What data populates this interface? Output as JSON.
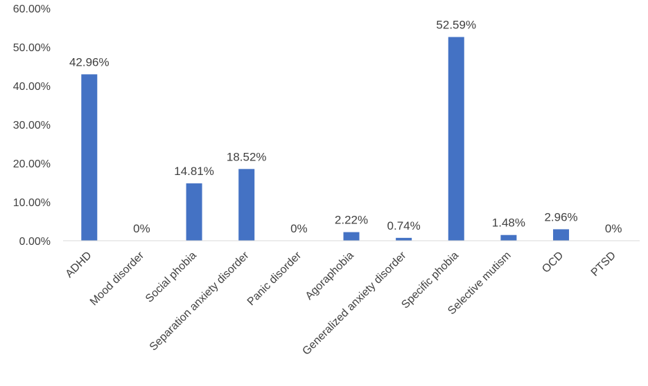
{
  "chart_data": {
    "type": "bar",
    "categories": [
      "ADHD",
      "Mood disorder",
      "Social phobia",
      "Separation anxiety disorder",
      "Panic disorder",
      "Agoraphobia",
      "Generalized anxiety disorder",
      "Specific phobia",
      "Selective mutism",
      "OCD",
      "PTSD"
    ],
    "values": [
      42.96,
      0,
      14.81,
      18.52,
      0,
      2.22,
      0.74,
      52.59,
      1.48,
      2.96,
      0
    ],
    "data_labels": [
      "42.96%",
      "0%",
      "14.81%",
      "18.52%",
      "0%",
      "2.22%",
      "0.74%",
      "52.59%",
      "1.48%",
      "2.96%",
      "0%"
    ],
    "y_ticks": [
      0,
      10,
      20,
      30,
      40,
      50,
      60
    ],
    "y_tick_labels": [
      "0.00%",
      "10.00%",
      "20.00%",
      "30.00%",
      "40.00%",
      "50.00%",
      "60.00%"
    ],
    "ylim": [
      0,
      60
    ],
    "grid": false,
    "legend": "none",
    "title": "",
    "xlabel": "",
    "ylabel": "",
    "bar_color": "#4472c4",
    "axis_color": "#d9d9d9"
  }
}
